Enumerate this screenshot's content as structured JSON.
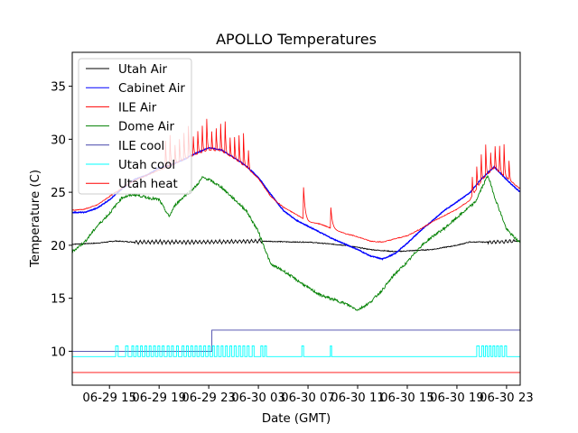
{
  "chart_data": {
    "type": "line",
    "title": "APOLLO Temperatures",
    "xlabel": "Date (GMT)",
    "ylabel": "Temperature (C)",
    "x_unit": "hours since 06-29 00:00 GMT",
    "xlim": [
      12.0,
      48.1
    ],
    "ylim": [
      6.8,
      38.2
    ],
    "grid": false,
    "legend_position": "top-left",
    "yticks": [
      10,
      15,
      20,
      25,
      30,
      35
    ],
    "ytick_labels": [
      "10",
      "15",
      "20",
      "25",
      "30",
      "35"
    ],
    "xticks": [
      15,
      19,
      23,
      27,
      31,
      35,
      39,
      43,
      47
    ],
    "xtick_labels": [
      "06-29 15",
      "06-29 19",
      "06-29 23",
      "06-30 03",
      "06-30 07",
      "06-30 11",
      "06-30 15",
      "06-30 19",
      "06-30 23"
    ],
    "series": [
      {
        "name": "Utah Air",
        "color": "#000000",
        "x": [
          12,
          14,
          15.5,
          17,
          20,
          23,
          27,
          30,
          31,
          34,
          36,
          38,
          41,
          43,
          44,
          46,
          48
        ],
        "y": [
          20.1,
          20.2,
          20.4,
          20.3,
          20.3,
          20.3,
          20.4,
          20.3,
          20.3,
          20.0,
          19.6,
          19.4,
          19.6,
          20.0,
          20.3,
          20.3,
          20.4
        ],
        "oscillation": {
          "ranges": [
            [
              17,
              27.3
            ],
            [
              45.5,
              47.6
            ]
          ],
          "amplitude": 0.35,
          "period": 0.32
        }
      },
      {
        "name": "Cabinet Air",
        "color": "#0000ff",
        "x": [
          12,
          13,
          14,
          15,
          16,
          17,
          18,
          19,
          20,
          21,
          22,
          23,
          24,
          25,
          26,
          27,
          28,
          29,
          30,
          31,
          32,
          33,
          34,
          35,
          36,
          37,
          38,
          39,
          40,
          41,
          42,
          43,
          44,
          45,
          46,
          47,
          48
        ],
        "y": [
          23.1,
          23.1,
          23.5,
          24.3,
          25.3,
          26.2,
          26.6,
          27.3,
          27.6,
          28.1,
          28.7,
          29.2,
          29.0,
          28.3,
          27.5,
          26.4,
          24.8,
          23.3,
          22.4,
          21.8,
          21.2,
          20.6,
          20.1,
          19.6,
          19.0,
          18.7,
          19.2,
          20.2,
          21.3,
          22.3,
          23.3,
          24.1,
          24.9,
          26.3,
          27.4,
          26.2,
          25.1
        ]
      },
      {
        "name": "ILE Air",
        "color": "#ff0000",
        "x": [
          12,
          13,
          14,
          15,
          16,
          17,
          18,
          19,
          20,
          21,
          22,
          23,
          24,
          25,
          26,
          27,
          28,
          29,
          30.5,
          31,
          32,
          33.5,
          34,
          35,
          36,
          37,
          38,
          39,
          40,
          41,
          42,
          43,
          44,
          45,
          46,
          47,
          48
        ],
        "y": [
          23.3,
          23.4,
          23.8,
          24.6,
          25.4,
          26.1,
          26.6,
          27.1,
          27.5,
          28.1,
          28.6,
          29.0,
          28.9,
          28.2,
          27.4,
          26.3,
          24.6,
          23.6,
          22.6,
          22.2,
          22.0,
          21.3,
          21.1,
          20.8,
          20.4,
          20.3,
          20.6,
          20.9,
          21.5,
          22.2,
          22.8,
          23.4,
          24.2,
          26.1,
          27.3,
          26.4,
          25.4
        ],
        "spikes": [
          {
            "x": 30.6,
            "peak": 26.6
          },
          {
            "x": 32.8,
            "peak": 24.3
          }
        ],
        "oscillation": {
          "ranges": [
            [
              19.5,
              26.3
            ],
            [
              44.2,
              47.5
            ]
          ],
          "amplitude": 3.5,
          "period": 0.37
        }
      },
      {
        "name": "Dome Air",
        "color": "#008000",
        "x": [
          12,
          13,
          14,
          15,
          16,
          17,
          18,
          19,
          19.8,
          20.3,
          21,
          22,
          22.5,
          23,
          24,
          25,
          26,
          27,
          28,
          29,
          30,
          31,
          32,
          33,
          34,
          35,
          36,
          37,
          38,
          39,
          40,
          41,
          42,
          43,
          44,
          44.5,
          45,
          45.5,
          46,
          47,
          48
        ],
        "y": [
          19.4,
          20.3,
          21.8,
          23.0,
          24.5,
          24.8,
          24.5,
          24.3,
          22.7,
          23.8,
          24.6,
          25.6,
          26.4,
          26.2,
          25.5,
          24.4,
          23.3,
          21.3,
          18.2,
          17.6,
          16.8,
          16.0,
          15.3,
          14.9,
          14.5,
          13.9,
          14.6,
          15.8,
          17.3,
          18.4,
          19.8,
          20.8,
          21.6,
          22.6,
          23.6,
          24.1,
          25.4,
          26.6,
          24.7,
          21.5,
          20.3
        ]
      },
      {
        "name": "ILE cool",
        "color": "#4444aa",
        "x": [
          12,
          23.25,
          23.25,
          48.1
        ],
        "y": [
          10,
          10,
          12,
          12
        ]
      },
      {
        "name": "Utah cool",
        "color": "#00ffff",
        "base": 9.5,
        "on": 10.5,
        "pulses": [
          [
            15.5,
            15.7
          ],
          [
            16.3,
            16.5
          ],
          [
            16.8,
            16.95
          ],
          [
            17.15,
            17.3
          ],
          [
            17.5,
            17.65
          ],
          [
            17.85,
            18.0
          ],
          [
            18.2,
            18.35
          ],
          [
            18.55,
            18.7
          ],
          [
            18.9,
            19.05
          ],
          [
            19.25,
            19.4
          ],
          [
            19.65,
            19.8
          ],
          [
            20.0,
            20.15
          ],
          [
            20.4,
            20.55
          ],
          [
            20.85,
            21.0
          ],
          [
            21.2,
            21.35
          ],
          [
            21.55,
            21.7
          ],
          [
            21.9,
            22.05
          ],
          [
            22.25,
            22.4
          ],
          [
            22.6,
            22.75
          ],
          [
            22.95,
            23.1
          ],
          [
            23.3,
            23.45
          ],
          [
            23.65,
            23.8
          ],
          [
            24.0,
            24.15
          ],
          [
            24.35,
            24.5
          ],
          [
            24.7,
            24.85
          ],
          [
            25.05,
            25.2
          ],
          [
            25.4,
            25.55
          ],
          [
            25.75,
            25.9
          ],
          [
            26.1,
            26.25
          ],
          [
            26.5,
            26.65
          ],
          [
            27.2,
            27.35
          ],
          [
            27.5,
            27.65
          ],
          [
            30.5,
            30.65
          ],
          [
            32.8,
            32.9
          ],
          [
            44.6,
            44.8
          ],
          [
            45.0,
            45.15
          ],
          [
            45.3,
            45.45
          ],
          [
            45.6,
            45.75
          ],
          [
            45.9,
            46.05
          ],
          [
            46.2,
            46.35
          ],
          [
            46.5,
            46.65
          ],
          [
            46.85,
            47.0
          ]
        ]
      },
      {
        "name": "Utah heat",
        "color": "#ff0000",
        "x": [
          12,
          48.1
        ],
        "y": [
          8,
          8
        ]
      }
    ]
  }
}
